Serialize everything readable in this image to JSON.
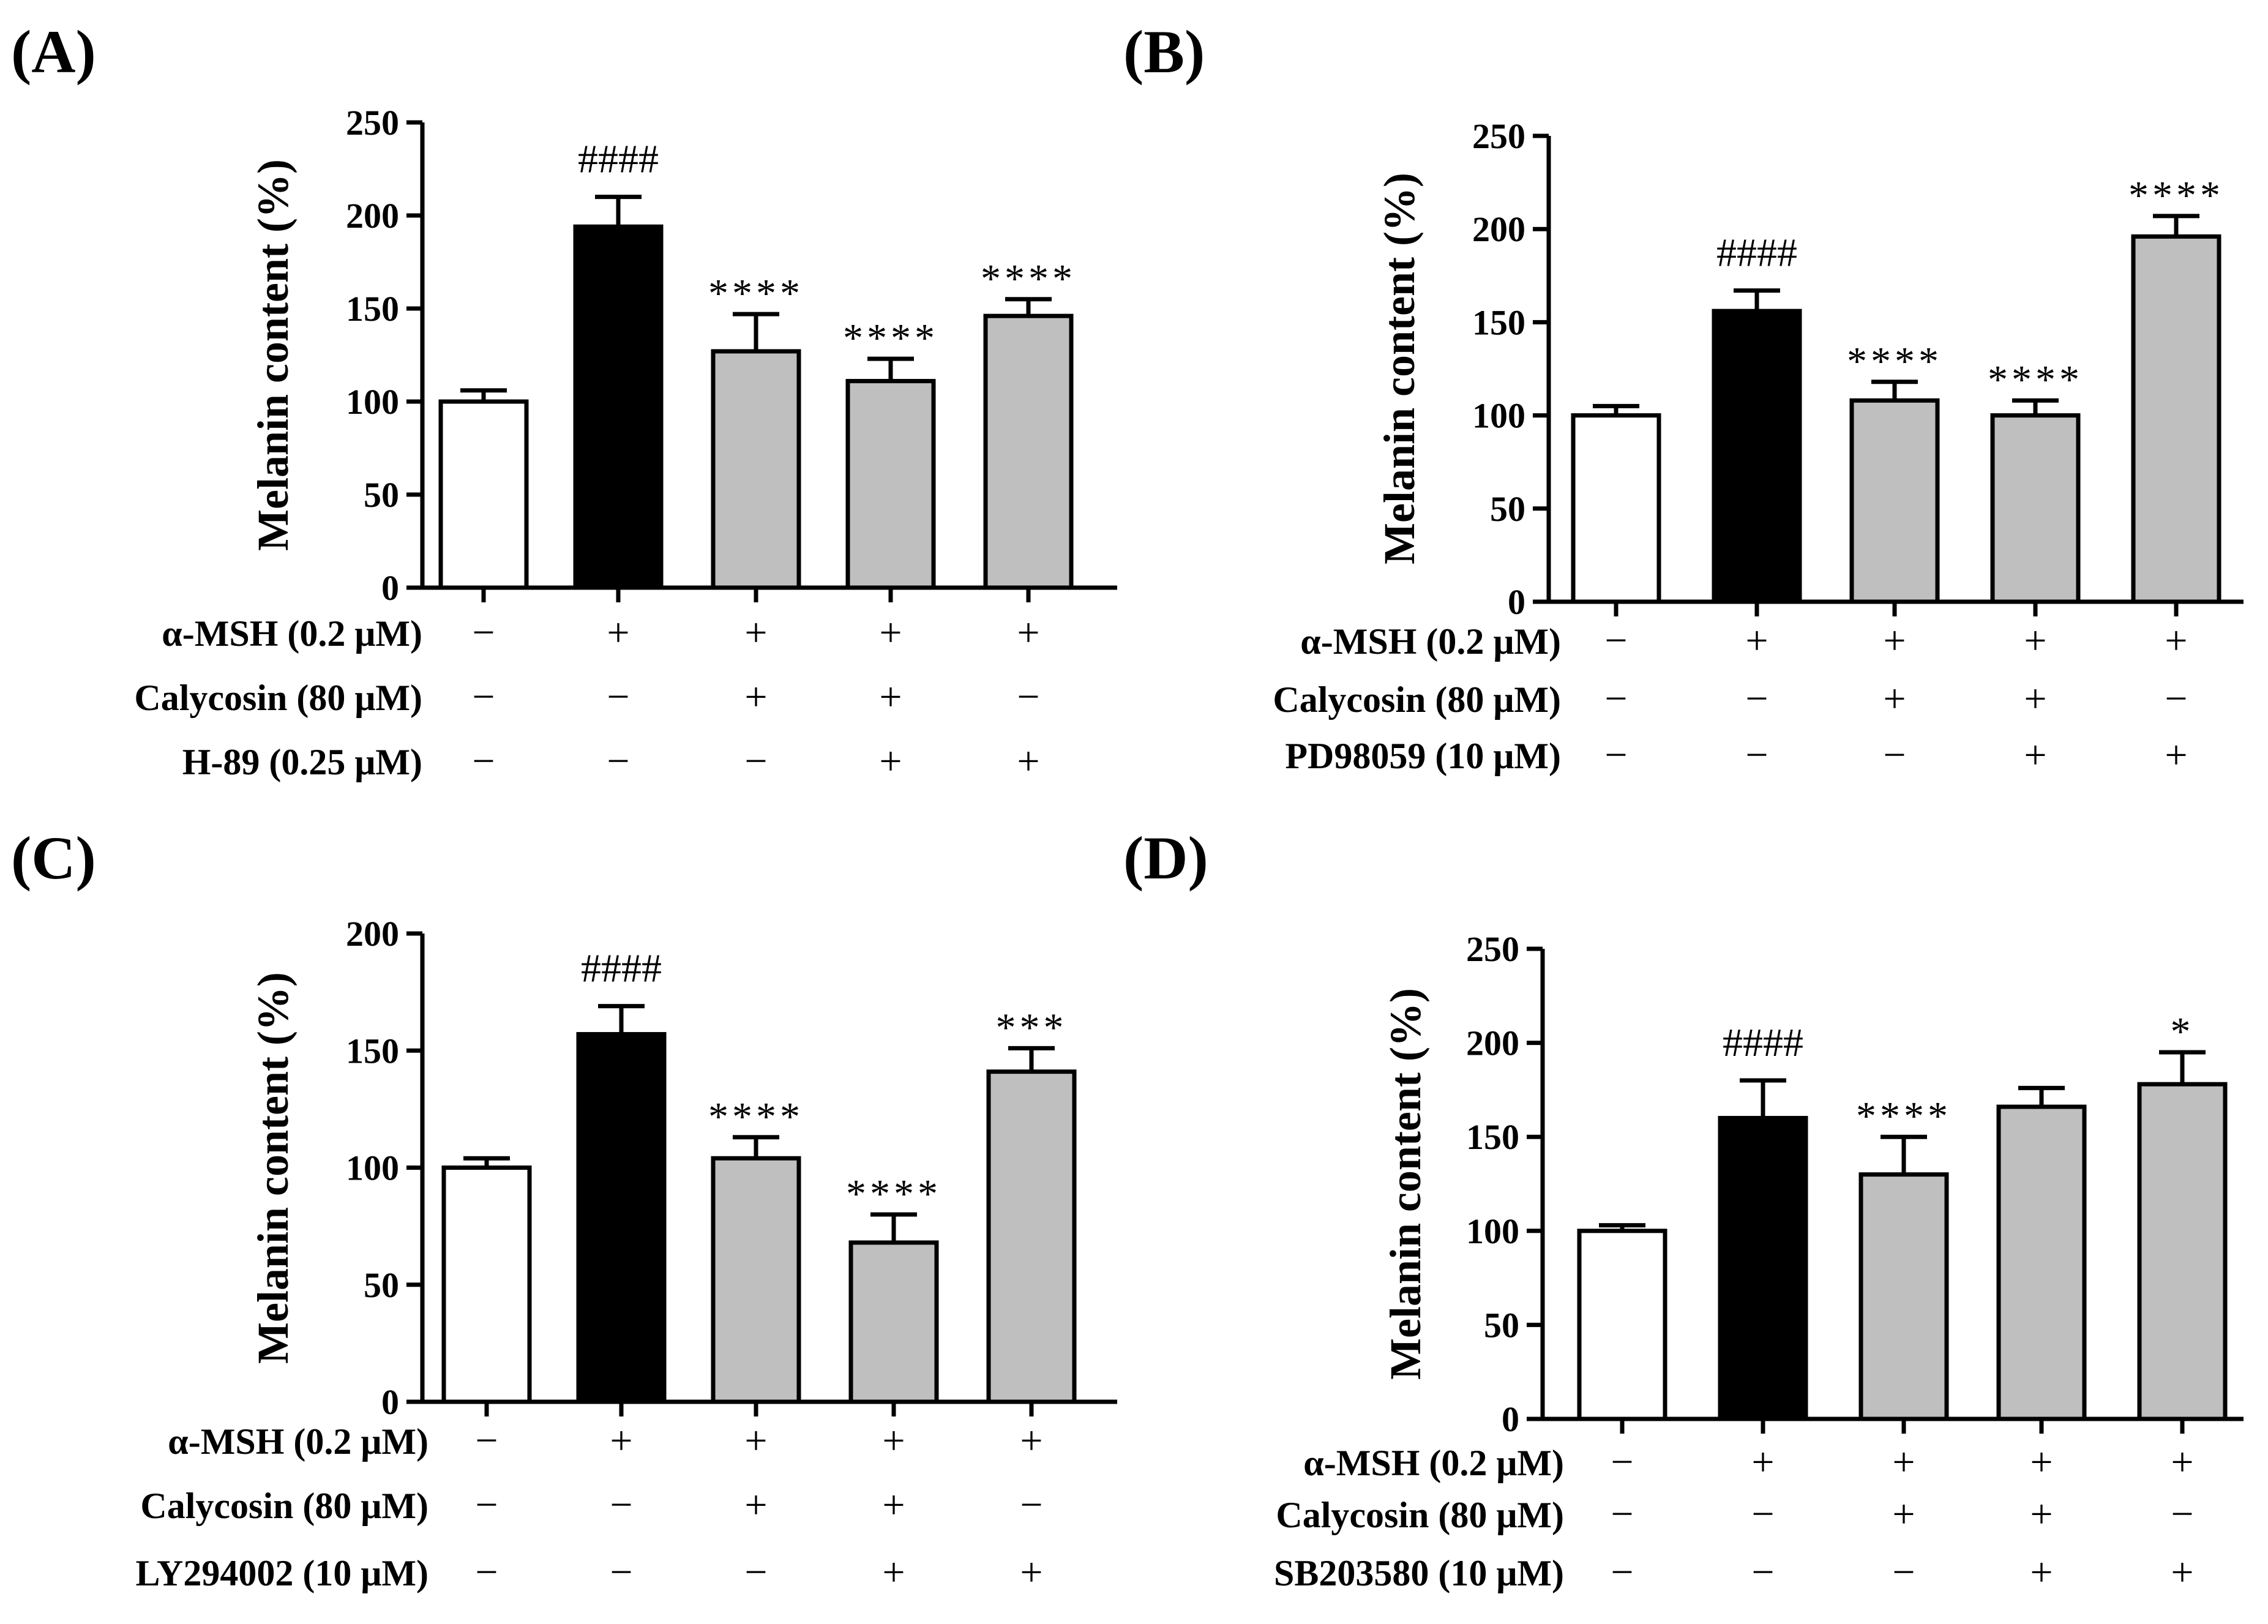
{
  "colors": {
    "control": "#ffffff",
    "msh": "#000000",
    "treated": "#bfbfbf",
    "axis": "#000000"
  },
  "chart_data": [
    {
      "type": "bar",
      "panel": "(A)",
      "ylabel": "Melanin content (%)",
      "ylim": [
        0,
        250
      ],
      "yticks": [
        "0",
        "50",
        "100",
        "150",
        "200",
        "250"
      ],
      "values": [
        100,
        194,
        127,
        111,
        146
      ],
      "errors": [
        6,
        16,
        20,
        12,
        9
      ],
      "bar_style": [
        "control",
        "msh",
        "treated",
        "treated",
        "treated"
      ],
      "significance": [
        "",
        "####",
        "****",
        "****",
        "****"
      ],
      "conditions": [
        {
          "label": "α-MSH (0.2 μM)",
          "signs": [
            "−",
            "+",
            "+",
            "+",
            "+"
          ]
        },
        {
          "label": "Calycosin (80 μM)",
          "signs": [
            "−",
            "−",
            "+",
            "+",
            "−"
          ]
        },
        {
          "label": "H-89 (0.25 μM)",
          "signs": [
            "−",
            "−",
            "−",
            "+",
            "+"
          ]
        }
      ]
    },
    {
      "type": "bar",
      "panel": "(B)",
      "ylabel": "Melanin content (%)",
      "ylim": [
        0,
        250
      ],
      "yticks": [
        "0",
        "50",
        "100",
        "150",
        "200",
        "250"
      ],
      "values": [
        100,
        156,
        108,
        100,
        196
      ],
      "errors": [
        5,
        11,
        10,
        8,
        11
      ],
      "bar_style": [
        "control",
        "msh",
        "treated",
        "treated",
        "treated"
      ],
      "significance": [
        "",
        "####",
        "****",
        "****",
        "****"
      ],
      "conditions": [
        {
          "label": "α-MSH (0.2 μM)",
          "signs": [
            "−",
            "+",
            "+",
            "+",
            "+"
          ]
        },
        {
          "label": "Calycosin (80 μM)",
          "signs": [
            "−",
            "−",
            "+",
            "+",
            "−"
          ]
        },
        {
          "label": "PD98059 (10 μM)",
          "signs": [
            "−",
            "−",
            "−",
            "+",
            "+"
          ]
        }
      ]
    },
    {
      "type": "bar",
      "panel": "(C)",
      "ylabel": "Melanin content (%)",
      "ylim": [
        0,
        200
      ],
      "yticks": [
        "0",
        "50",
        "100",
        "150",
        "200"
      ],
      "values": [
        100,
        157,
        104,
        68,
        141
      ],
      "errors": [
        4,
        12,
        9,
        12,
        10
      ],
      "bar_style": [
        "control",
        "msh",
        "treated",
        "treated",
        "treated"
      ],
      "significance": [
        "",
        "####",
        "****",
        "****",
        "***"
      ],
      "conditions": [
        {
          "label": "α-MSH (0.2 μM)",
          "signs": [
            "−",
            "+",
            "+",
            "+",
            "+"
          ]
        },
        {
          "label": "Calycosin (80 μM)",
          "signs": [
            "−",
            "−",
            "+",
            "+",
            "−"
          ]
        },
        {
          "label": "LY294002 (10 μM)",
          "signs": [
            "−",
            "−",
            "−",
            "+",
            "+"
          ]
        }
      ]
    },
    {
      "type": "bar",
      "panel": "(D)",
      "ylabel": "Melanin content (%)",
      "ylim": [
        0,
        250
      ],
      "yticks": [
        "0",
        "50",
        "100",
        "150",
        "200",
        "250"
      ],
      "values": [
        100,
        160,
        130,
        166,
        178
      ],
      "errors": [
        3,
        20,
        20,
        10,
        17
      ],
      "bar_style": [
        "control",
        "msh",
        "treated",
        "treated",
        "treated"
      ],
      "significance": [
        "",
        "####",
        "****",
        "",
        "*"
      ],
      "conditions": [
        {
          "label": "α-MSH (0.2 μM)",
          "signs": [
            "−",
            "+",
            "+",
            "+",
            "+"
          ]
        },
        {
          "label": "Calycosin (80 μM)",
          "signs": [
            "−",
            "−",
            "+",
            "+",
            "−"
          ]
        },
        {
          "label": "SB203580 (10 μM)",
          "signs": [
            "−",
            "−",
            "−",
            "+",
            "+"
          ]
        }
      ]
    }
  ]
}
